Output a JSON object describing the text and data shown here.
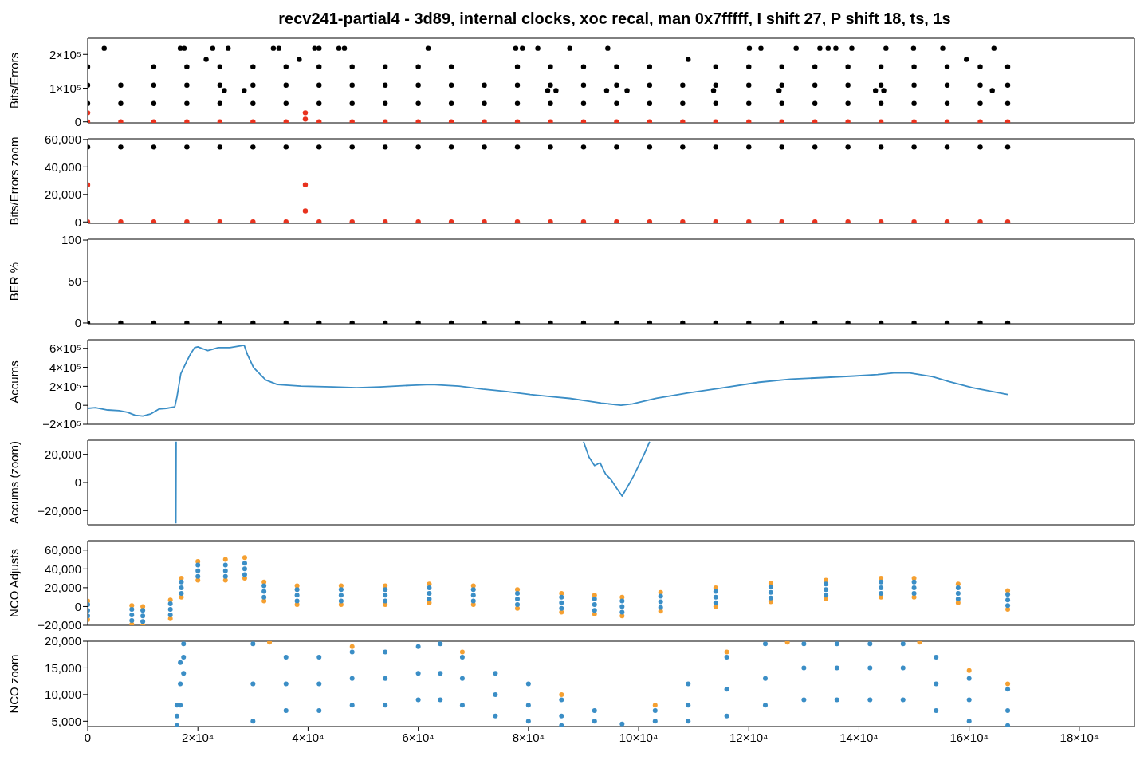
{
  "chart_data": [
    {
      "type": "scatter",
      "title": "recv241-partial4 - 3d89, internal clocks, xoc recal, man 0x7fffff, I shift 27, P shift 18, ts, 1s",
      "ylabel": "Bits/Errors",
      "xlim": [
        0,
        190000
      ],
      "ylim": [
        -3000,
        248000
      ],
      "yticks": [
        0,
        {
          "value": 100000,
          "label": "1×10⁵"
        },
        {
          "value": 200000,
          "label": "2×10⁵"
        }
      ],
      "tick_labels": "y",
      "marker": "circle",
      "series": [
        {
          "color": "#000000",
          "x": [
            0,
            6000,
            12000,
            18000,
            24000,
            30000,
            36000,
            42000,
            48000,
            54000,
            60000,
            66000,
            72000,
            78000,
            84000,
            90000,
            96000,
            102000,
            108000,
            114000,
            120000,
            126000,
            132000,
            138000,
            144000,
            150000,
            156000,
            162000,
            167000
          ],
          "values": [
            54500,
            54500,
            54500,
            54500,
            54500,
            54500,
            54500,
            54500,
            54500,
            54500,
            54500,
            54500,
            54500,
            54500,
            54500,
            54500,
            54500,
            54500,
            54500,
            54500,
            54500,
            54500,
            54500,
            54500,
            54500,
            54500,
            54500,
            54500,
            54500
          ]
        },
        {
          "color": "#000000",
          "x": [
            0,
            6000,
            12000,
            18000,
            24000,
            30000,
            36000,
            42000,
            48000,
            54000,
            60000,
            66000,
            72000,
            78000,
            84000,
            90000,
            96000,
            102000,
            108000,
            114000,
            120000,
            126000,
            132000,
            138000,
            144000,
            150000,
            156000,
            162000,
            167000
          ],
          "values": [
            109000,
            109000,
            109000,
            109000,
            109000,
            109000,
            109000,
            109000,
            109000,
            109000,
            109000,
            109000,
            109000,
            109000,
            109000,
            109000,
            109000,
            109000,
            109000,
            109000,
            109000,
            109000,
            109000,
            109000,
            109000,
            109000,
            109000,
            109000,
            109000
          ]
        },
        {
          "color": "#000000",
          "x": [
            0,
            12000,
            18000,
            24000,
            30000,
            36000,
            42000,
            48000,
            54000,
            60000,
            66000,
            78000,
            84000,
            90000,
            96000,
            102000,
            114000,
            120000,
            126000,
            132000,
            138000,
            144000,
            150000,
            156000,
            162000,
            167000
          ],
          "values": [
            163600,
            163600,
            163600,
            163600,
            163600,
            163600,
            163600,
            163600,
            163600,
            163600,
            163600,
            163600,
            163600,
            163600,
            163600,
            163600,
            163600,
            163600,
            163600,
            163600,
            163600,
            163600,
            163600,
            163600,
            163600,
            163600
          ]
        },
        {
          "color": "#000000",
          "x": [
            3000,
            16800,
            17500,
            22700,
            25500,
            33700,
            34700,
            41200,
            42000,
            45600,
            46600,
            61800,
            77700,
            78900,
            81700,
            87500,
            94400,
            120100,
            122200,
            128600,
            132900,
            134400,
            135800,
            138700,
            144900,
            149900,
            155200,
            164500
          ],
          "values": [
            218000,
            218000,
            218000,
            218000,
            218000,
            218000,
            218000,
            218000,
            218000,
            218000,
            218000,
            218000,
            218000,
            218000,
            218000,
            218000,
            218000,
            218000,
            218000,
            218000,
            218000,
            218000,
            218000,
            218000,
            218000,
            218000,
            218000,
            218000
          ]
        },
        {
          "color": "#000000",
          "x": [
            21500,
            38400,
            109000,
            159500,
            24800,
            28400,
            83500,
            85000,
            94200,
            97900,
            113600,
            125500,
            143000,
            144500,
            164200
          ],
          "values": [
            185000,
            185000,
            185000,
            185000,
            93000,
            93000,
            93000,
            93000,
            93000,
            93000,
            93000,
            93000,
            93000,
            93000,
            93000
          ]
        },
        {
          "color": "#e8321e",
          "x": [
            0,
            6000,
            12000,
            18000,
            24000,
            30000,
            36000,
            42000,
            48000,
            54000,
            60000,
            66000,
            72000,
            78000,
            84000,
            90000,
            96000,
            102000,
            108000,
            114000,
            120000,
            126000,
            132000,
            138000,
            144000,
            150000,
            156000,
            162000,
            167000,
            0,
            39500,
            39500
          ],
          "values": [
            0,
            0,
            0,
            0,
            0,
            0,
            0,
            0,
            0,
            0,
            0,
            0,
            0,
            0,
            0,
            0,
            0,
            0,
            0,
            0,
            0,
            0,
            0,
            0,
            0,
            0,
            0,
            0,
            0,
            27000,
            27000,
            8000
          ]
        }
      ]
    },
    {
      "type": "scatter",
      "ylabel": "Bits/Errors zoom",
      "xlim": [
        0,
        190000
      ],
      "ylim": [
        -1000,
        60500
      ],
      "yticks": [
        0,
        {
          "value": 20000,
          "label": "20,000"
        },
        {
          "value": 40000,
          "label": "40,000"
        },
        {
          "value": 60000,
          "label": "60,000"
        }
      ],
      "tick_labels": "y",
      "marker": "circle",
      "series": [
        {
          "color": "#000000",
          "x": [
            0,
            6000,
            12000,
            18000,
            24000,
            30000,
            36000,
            42000,
            48000,
            54000,
            60000,
            66000,
            72000,
            78000,
            84000,
            90000,
            96000,
            102000,
            108000,
            114000,
            120000,
            126000,
            132000,
            138000,
            144000,
            150000,
            156000,
            162000,
            167000
          ],
          "values": [
            54500,
            54500,
            54500,
            54500,
            54500,
            54500,
            54500,
            54500,
            54500,
            54500,
            54500,
            54500,
            54500,
            54500,
            54500,
            54500,
            54500,
            54500,
            54500,
            54500,
            54500,
            54500,
            54500,
            54500,
            54500,
            54500,
            54500,
            54500,
            54500
          ]
        },
        {
          "color": "#e8321e",
          "x": [
            0,
            6000,
            12000,
            18000,
            24000,
            30000,
            36000,
            42000,
            48000,
            54000,
            60000,
            66000,
            72000,
            78000,
            84000,
            90000,
            96000,
            102000,
            108000,
            114000,
            120000,
            126000,
            132000,
            138000,
            144000,
            150000,
            156000,
            162000,
            167000,
            0,
            39500,
            39500
          ],
          "values": [
            0,
            0,
            0,
            0,
            0,
            0,
            0,
            0,
            0,
            0,
            0,
            0,
            0,
            0,
            0,
            0,
            0,
            0,
            0,
            0,
            0,
            0,
            0,
            0,
            0,
            0,
            0,
            0,
            0,
            27000,
            27000,
            8000
          ]
        }
      ]
    },
    {
      "type": "scatter",
      "ylabel": "BER %",
      "xlim": [
        0,
        190000
      ],
      "ylim": [
        -1,
        101
      ],
      "yticks": [
        0,
        50,
        100
      ],
      "tick_labels": "y",
      "marker": "circle",
      "series": [
        {
          "color": "#000000",
          "x": [
            0,
            6000,
            12000,
            18000,
            24000,
            30000,
            36000,
            42000,
            48000,
            54000,
            60000,
            66000,
            72000,
            78000,
            84000,
            90000,
            96000,
            102000,
            108000,
            114000,
            120000,
            126000,
            132000,
            138000,
            144000,
            150000,
            156000,
            162000,
            167000
          ],
          "values": [
            0,
            0,
            0,
            0,
            0,
            0,
            0,
            0,
            0,
            0,
            0,
            0,
            0,
            0,
            0,
            0,
            0,
            0,
            0,
            0,
            0,
            0,
            0,
            0,
            0,
            0,
            0,
            0,
            0
          ]
        }
      ]
    },
    {
      "type": "line",
      "ylabel": "Accums",
      "xlim": [
        0,
        190000
      ],
      "ylim": [
        -200000,
        690000
      ],
      "yticks": [
        {
          "value": -200000,
          "label": "−2×10⁵"
        },
        0,
        {
          "value": 200000,
          "label": "2×10⁵"
        },
        {
          "value": 400000,
          "label": "4×10⁵"
        },
        {
          "value": 600000,
          "label": "6×10⁵"
        }
      ],
      "tick_labels": "y",
      "line_style": "solid",
      "series": [
        {
          "color": "#3b8ec6",
          "x": [
            0,
            1400,
            3600,
            5700,
            7200,
            8600,
            10000,
            11500,
            12900,
            14300,
            15800,
            16200,
            16900,
            17900,
            18600,
            19400,
            20000,
            21800,
            23700,
            25800,
            28400,
            29000,
            30100,
            32300,
            34400,
            38700,
            44500,
            48800,
            53100,
            58800,
            62400,
            67400,
            71700,
            76000,
            80300,
            84600,
            87500,
            90300,
            93200,
            96800,
            98900,
            103200,
            109000,
            114700,
            121900,
            127600,
            133400,
            139100,
            143400,
            146300,
            149200,
            153400,
            156300,
            160600,
            167000
          ],
          "values": [
            -32000,
            -24000,
            -49000,
            -57000,
            -73000,
            -105000,
            -113000,
            -89000,
            -40000,
            -32000,
            -16000,
            89000,
            332000,
            453000,
            534000,
            607000,
            615000,
            575000,
            607000,
            607000,
            632000,
            534000,
            397000,
            267000,
            219000,
            202000,
            194000,
            186000,
            194000,
            211000,
            219000,
            202000,
            170000,
            146000,
            113000,
            89000,
            73000,
            49000,
            24000,
            0,
            16000,
            73000,
            130000,
            178000,
            243000,
            275000,
            291000,
            308000,
            324000,
            340000,
            340000,
            300000,
            251000,
            186000,
            113000
          ]
        }
      ]
    },
    {
      "type": "line",
      "ylabel": "Accums (zoom)",
      "xlim": [
        0,
        190000
      ],
      "ylim": [
        -30000,
        30000
      ],
      "yticks": [
        {
          "value": -20000,
          "label": "−20,000"
        },
        0,
        {
          "value": 20000,
          "label": "20,000"
        }
      ],
      "tick_labels": "y",
      "line_style": "solid",
      "series": [
        {
          "color": "#3b8ec6",
          "x": [
            16000,
            16050,
            50000,
            90000,
            91000,
            92000,
            93000,
            94000,
            95000,
            96000,
            97000,
            98000,
            99000,
            100000,
            101000,
            102000
          ],
          "values": [
            -29000,
            29000,
            null,
            29000,
            18000,
            12000,
            14000,
            6000,
            2000,
            -4000,
            -9600,
            -3000,
            4000,
            12000,
            20000,
            29000
          ]
        }
      ]
    },
    {
      "type": "scatter",
      "ylabel": "NCO Adjusts",
      "xlim": [
        0,
        190000
      ],
      "ylim": [
        -20000,
        70000
      ],
      "yticks": [
        {
          "value": -20000,
          "label": "−20,000"
        },
        0,
        {
          "value": 20000,
          "label": "20,000"
        },
        {
          "value": 40000,
          "label": "40,000"
        },
        {
          "value": 60000,
          "label": "60,000"
        }
      ],
      "tick_labels": "y",
      "marker": "circle",
      "series": [
        {
          "color": "#f5a031",
          "x": [
            0,
            8000,
            10000,
            15000,
            17000,
            20000,
            25000,
            28500,
            32000,
            38000,
            46000,
            54000,
            62000,
            70000,
            78000,
            86000,
            92000,
            97000,
            104000,
            114000,
            124000,
            134000,
            144000,
            150000,
            158000,
            167000
          ],
          "values": [
            6000,
            1000,
            0,
            7000,
            30000,
            48000,
            50000,
            52000,
            26000,
            22000,
            22000,
            22000,
            24000,
            22000,
            18000,
            14000,
            12000,
            10000,
            15000,
            20000,
            25000,
            28000,
            30000,
            30000,
            24000,
            17000
          ]
        },
        {
          "color": "#f5a031",
          "x": [
            0,
            8000,
            10000,
            15000,
            17000,
            20000,
            25000,
            28500,
            32000,
            38000,
            46000,
            54000,
            62000,
            70000,
            78000,
            86000,
            92000,
            97000,
            104000,
            114000,
            124000,
            134000,
            144000,
            150000,
            158000,
            167000
          ],
          "values": [
            -14000,
            -19000,
            -20000,
            -13000,
            10000,
            28000,
            28000,
            30000,
            6000,
            2000,
            2000,
            2000,
            4000,
            2000,
            -2000,
            -6000,
            -8000,
            -10000,
            -5000,
            0,
            5000,
            8000,
            10000,
            10000,
            4000,
            -3000
          ]
        },
        {
          "color": "#3b8ec6",
          "x": [
            0,
            8000,
            10000,
            15000,
            17000,
            20000,
            25000,
            28500,
            32000,
            38000,
            46000,
            54000,
            62000,
            70000,
            78000,
            86000,
            92000,
            97000,
            104000,
            114000,
            124000,
            134000,
            144000,
            150000,
            158000,
            167000
          ],
          "values": [
            2000,
            -3000,
            -4000,
            3000,
            26000,
            44000,
            44000,
            46000,
            22000,
            18000,
            18000,
            18000,
            20000,
            18000,
            14000,
            10000,
            8000,
            6000,
            11000,
            16000,
            21000,
            24000,
            26000,
            26000,
            20000,
            13000
          ]
        },
        {
          "color": "#3b8ec6",
          "x": [
            0,
            8000,
            10000,
            15000,
            17000,
            20000,
            25000,
            28500,
            32000,
            38000,
            46000,
            54000,
            62000,
            70000,
            78000,
            86000,
            92000,
            97000,
            104000,
            114000,
            124000,
            134000,
            144000,
            150000,
            158000,
            167000
          ],
          "values": [
            -4000,
            -9000,
            -10000,
            -3000,
            20000,
            38000,
            38000,
            40000,
            16000,
            12000,
            12000,
            12000,
            14000,
            12000,
            8000,
            4000,
            2000,
            0,
            5000,
            10000,
            15000,
            18000,
            20000,
            20000,
            14000,
            7000
          ]
        },
        {
          "color": "#3b8ec6",
          "x": [
            0,
            8000,
            10000,
            15000,
            17000,
            20000,
            25000,
            28500,
            32000,
            38000,
            46000,
            54000,
            62000,
            70000,
            78000,
            86000,
            92000,
            97000,
            104000,
            114000,
            124000,
            134000,
            144000,
            150000,
            158000,
            167000
          ],
          "values": [
            -10000,
            -15000,
            -16000,
            -9000,
            14000,
            32000,
            32000,
            34000,
            10000,
            6000,
            6000,
            6000,
            8000,
            6000,
            2000,
            -2000,
            -4000,
            -6000,
            -1000,
            4000,
            9000,
            12000,
            14000,
            14000,
            8000,
            1000
          ]
        }
      ]
    },
    {
      "type": "scatter",
      "ylabel": "NCO zoom",
      "xlim": [
        0,
        190000
      ],
      "ylim": [
        4000,
        20000
      ],
      "yticks": [
        {
          "value": 5000,
          "label": "5,000"
        },
        {
          "value": 10000,
          "label": "10,000"
        },
        {
          "value": 15000,
          "label": "15,000"
        },
        {
          "value": 20000,
          "label": "20,000"
        }
      ],
      "xticks": [
        0,
        {
          "value": 20000,
          "label": "2×10⁴"
        },
        {
          "value": 40000,
          "label": "4×10⁴"
        },
        {
          "value": 60000,
          "label": "6×10⁴"
        },
        {
          "value": 80000,
          "label": "8×10⁴"
        },
        {
          "value": 100000,
          "label": "10×10⁴"
        },
        {
          "value": 120000,
          "label": "12×10⁴"
        },
        {
          "value": 140000,
          "label": "14×10⁴"
        },
        {
          "value": 160000,
          "label": "16×10⁴"
        },
        {
          "value": 180000,
          "label": "18×10⁴"
        }
      ],
      "marker": "circle",
      "series": [
        {
          "color": "#f5a031",
          "x": [
            33000,
            48000,
            68000,
            86000,
            103000,
            116000,
            127000,
            151000,
            160000,
            167000
          ],
          "values": [
            19800,
            19000,
            18000,
            10000,
            8000,
            18000,
            19800,
            19800,
            14500,
            12000
          ]
        },
        {
          "color": "#3b8ec6",
          "x": [
            16200,
            16800,
            17400,
            30000,
            36000,
            42000,
            48000,
            54000,
            60000,
            64000,
            68000,
            74000,
            80000,
            86000,
            92000,
            97000,
            103000,
            109000,
            116000,
            123000,
            130000,
            136000,
            142000,
            148000,
            154000,
            160000,
            167000
          ],
          "values": [
            4200,
            8000,
            14000,
            5000,
            7000,
            7000,
            8000,
            8000,
            9000,
            9000,
            8000,
            6000,
            5000,
            4200,
            null,
            null,
            null,
            5000,
            6000,
            8000,
            9000,
            9000,
            9000,
            9000,
            7000,
            5000,
            4200
          ]
        },
        {
          "color": "#3b8ec6",
          "x": [
            16200,
            16800,
            17400,
            30000,
            36000,
            42000,
            48000,
            54000,
            60000,
            64000,
            68000,
            74000,
            80000,
            86000,
            92000,
            97000,
            103000,
            109000,
            116000,
            123000,
            130000,
            136000,
            142000,
            148000,
            154000,
            160000,
            167000
          ],
          "values": [
            6000,
            12000,
            17000,
            12000,
            12000,
            12000,
            13000,
            13000,
            14000,
            14000,
            13000,
            10000,
            8000,
            6000,
            5000,
            null,
            5000,
            8000,
            11000,
            13000,
            15000,
            15000,
            15000,
            15000,
            12000,
            9000,
            7000
          ]
        },
        {
          "color": "#3b8ec6",
          "x": [
            16200,
            16800,
            17400,
            30000,
            36000,
            42000,
            48000,
            54000,
            60000,
            64000,
            68000,
            74000,
            80000,
            86000,
            92000,
            97000,
            103000,
            109000,
            116000,
            123000,
            130000,
            136000,
            142000,
            148000,
            154000,
            160000,
            167000
          ],
          "values": [
            8000,
            16000,
            19500,
            19500,
            17000,
            17000,
            18000,
            18000,
            19000,
            19500,
            17000,
            14000,
            12000,
            9000,
            7000,
            4500,
            7000,
            12000,
            17000,
            19500,
            19500,
            19500,
            19500,
            19500,
            17000,
            13000,
            11000
          ]
        }
      ]
    }
  ]
}
